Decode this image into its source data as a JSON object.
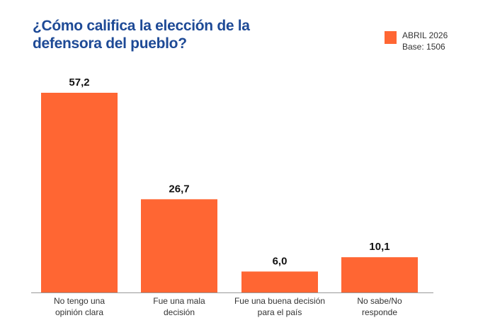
{
  "chart_data": {
    "type": "bar",
    "title": "¿Cómo califica la elección de la defensora del pueblo?",
    "categories": [
      [
        "No tengo una",
        "opinión clara"
      ],
      [
        "Fue una mala",
        "decisión"
      ],
      [
        "Fue una buena decisión",
        "para el país"
      ],
      [
        "No sabe/No",
        "responde"
      ]
    ],
    "series": [
      {
        "name": "ABRIL 2026",
        "values": [
          57.2,
          26.7,
          6.0,
          10.1
        ]
      }
    ],
    "value_labels": [
      "57,2",
      "26,7",
      "6,0",
      "10,1"
    ],
    "legend": {
      "series_name": "ABRIL 2026",
      "note": "Base: 1506",
      "placement": "top-right"
    },
    "ylim": [
      0,
      60
    ],
    "grid": false,
    "color": "#ff6633"
  }
}
